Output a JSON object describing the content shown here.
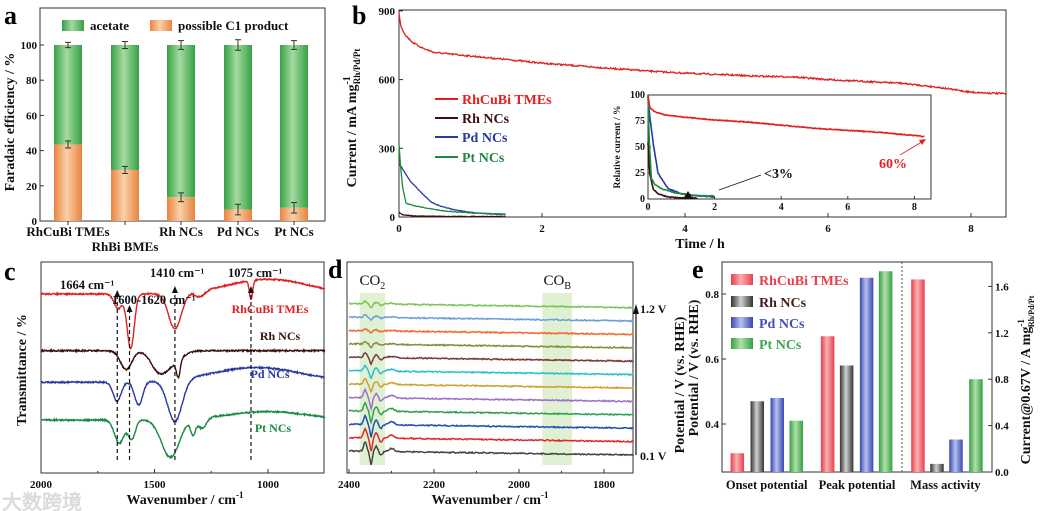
{
  "watermark": "大数跨境",
  "chart_data": [
    {
      "panel": "a",
      "type": "bar",
      "stacked": true,
      "ylabel": "Faradaic efficiency / %",
      "ylim": [
        0,
        110
      ],
      "yticks": [
        0,
        20,
        40,
        60,
        80,
        100
      ],
      "categories": [
        "RhCuBi TMEs",
        "RhBi BMEs",
        "Rh NCs",
        "Pd NCs",
        "Pt NCs"
      ],
      "series": [
        {
          "name": "possible C1 product",
          "color": "#f0a060",
          "values": [
            43.5,
            29,
            13.5,
            6.5,
            7.5
          ],
          "errors": [
            2,
            2,
            2.5,
            3,
            3
          ]
        },
        {
          "name": "acetate",
          "color": "#4cb058",
          "values": [
            56.5,
            71,
            86.5,
            93.5,
            92.5
          ],
          "total_errors": [
            1.5,
            2,
            2.5,
            3,
            2.5
          ]
        }
      ],
      "legend": "top"
    },
    {
      "panel": "b",
      "type": "line",
      "xlabel": "Time / h",
      "ylabel_main": "Current / mA mg",
      "ylabel_sup": "-1",
      "ylabel_sub": "Rh/Pd/Pt",
      "xlim": [
        0,
        8.5
      ],
      "ylim": [
        0,
        900
      ],
      "xticks": [
        0,
        2,
        4,
        6,
        8
      ],
      "yticks": [
        0,
        300,
        600,
        900
      ],
      "legend": "center-left",
      "series": [
        {
          "name": "RhCuBi TMEs",
          "color": "#e02020",
          "x": [
            0,
            0.03,
            0.1,
            0.2,
            0.35,
            0.5,
            1,
            1.5,
            2,
            2.5,
            3,
            3.5,
            4,
            4.5,
            5,
            5.5,
            6,
            6.5,
            7,
            7.5,
            8,
            8.5
          ],
          "y": [
            890,
            830,
            790,
            760,
            735,
            718,
            703,
            688,
            672,
            660,
            648,
            637,
            628,
            622,
            615,
            612,
            600,
            592,
            585,
            568,
            545,
            538
          ]
        },
        {
          "name": "Rh NCs",
          "color": "#3a1010",
          "x": [
            0,
            0.05,
            0.2,
            0.5,
            1,
            1.5
          ],
          "y": [
            20,
            10,
            5,
            3,
            2,
            2
          ]
        },
        {
          "name": "Pd NCs",
          "color": "#2838a0",
          "x": [
            0,
            0.05,
            0.15,
            0.3,
            0.45,
            0.6,
            0.8,
            1,
            1.25,
            1.5
          ],
          "y": [
            235,
            210,
            160,
            110,
            65,
            45,
            30,
            20,
            14,
            10
          ]
        },
        {
          "name": "Pt NCs",
          "color": "#1a8a40",
          "x": [
            0,
            0.02,
            0.05,
            0.1,
            0.2,
            0.4,
            0.6,
            0.8,
            1,
            1.25,
            1.5
          ],
          "y": [
            320,
            230,
            130,
            60,
            50,
            38,
            28,
            22,
            18,
            15,
            13
          ]
        }
      ],
      "inset": {
        "ylabel": "Relative current / %",
        "xlim": [
          0,
          8.5
        ],
        "ylim": [
          0,
          100
        ],
        "xticks": [
          0,
          2,
          4,
          6,
          8
        ],
        "yticks": [
          0,
          25,
          50,
          75,
          100
        ],
        "series": [
          {
            "name": "RhCuBi TMEs",
            "color": "#e02020",
            "x": [
              0,
              0.05,
              0.2,
              0.5,
              1,
              2,
              3,
              4,
              5,
              6,
              7,
              8,
              8.3
            ],
            "y": [
              100,
              88,
              84,
              81,
              79,
              76,
              74,
              71,
              68,
              66,
              64,
              61,
              60
            ]
          },
          {
            "name": "Rh NCs",
            "color": "#3a1010",
            "x": [
              0,
              0.05,
              0.15,
              0.3,
              0.6,
              1,
              1.5
            ],
            "y": [
              55,
              25,
              10,
              5,
              2,
              1,
              1
            ]
          },
          {
            "name": "Pd NCs",
            "color": "#2838a0",
            "x": [
              0,
              0.05,
              0.15,
              0.3,
              0.6,
              1,
              1.5,
              2
            ],
            "y": [
              100,
              80,
              55,
              25,
              10,
              5,
              3,
              2
            ]
          },
          {
            "name": "Pt NCs",
            "color": "#1a8a40",
            "x": [
              0,
              0.03,
              0.1,
              0.2,
              0.4,
              0.8,
              1.2,
              1.6,
              2
            ],
            "y": [
              100,
              60,
              20,
              14,
              10,
              6,
              4,
              3,
              3
            ]
          }
        ],
        "annotations": [
          {
            "text": "<3%",
            "color": "#111",
            "x": 1.2,
            "y": 3
          },
          {
            "text": "60%",
            "color": "#e02020",
            "x": 8.3,
            "y": 60
          }
        ]
      }
    },
    {
      "panel": "c",
      "type": "line",
      "xlabel_main": "Wavenumber / cm",
      "xlabel_sup": "-1",
      "ylabel": "Transmittance / %",
      "xlim": [
        2000,
        750
      ],
      "xticks": [
        2000,
        1500,
        1000
      ],
      "xticks_minor": [
        1750,
        1250
      ],
      "markers": [
        {
          "wavenumber": 1664,
          "label": "1664 cm⁻¹"
        },
        {
          "wavenumber": 1610,
          "label": "1600-1620 cm⁻¹"
        },
        {
          "wavenumber": 1410,
          "label": "1410 cm⁻¹"
        },
        {
          "wavenumber": 1075,
          "label": "1075 cm⁻¹"
        }
      ],
      "series": [
        {
          "name": "RhCuBi TMEs",
          "color": "#e02020",
          "offset": 3.0,
          "bands": [
            [
              1660,
              25,
              0.35
            ],
            [
              1605,
              22,
              1.3
            ],
            [
              1410,
              40,
              0.85
            ],
            [
              1300,
              30,
              0.15
            ],
            [
              1075,
              10,
              0.45
            ],
            [
              1000,
              250,
              -0.35
            ]
          ]
        },
        {
          "name": "Rh NCs",
          "color": "#3a1010",
          "offset": 1.65,
          "bands": [
            [
              1625,
              35,
              0.45
            ],
            [
              1480,
              50,
              0.45
            ],
            [
              1395,
              12,
              0.4
            ],
            [
              1420,
              60,
              0.25
            ]
          ]
        },
        {
          "name": "Pd NCs",
          "color": "#2838a0",
          "offset": 0.9,
          "bands": [
            [
              1665,
              25,
              0.45
            ],
            [
              1570,
              25,
              0.55
            ],
            [
              1410,
              45,
              1.0
            ],
            [
              1050,
              280,
              -0.35
            ]
          ]
        },
        {
          "name": "Pt NCs",
          "color": "#1a8a40",
          "offset": 0.0,
          "bands": [
            [
              1655,
              30,
              0.55
            ],
            [
              1600,
              22,
              0.45
            ],
            [
              1430,
              55,
              0.9
            ],
            [
              1330,
              15,
              0.35
            ],
            [
              1290,
              25,
              0.25
            ],
            [
              1000,
              250,
              -0.2
            ]
          ]
        }
      ]
    },
    {
      "panel": "d",
      "type": "line",
      "xlabel_main": "Wavenumber / cm",
      "xlabel_sup": "-1",
      "ylabel": "Potential / V (vs. RHE)",
      "xlim": [
        2400,
        1730
      ],
      "xticks": [
        2400,
        2200,
        2000,
        1800
      ],
      "xticks_minor": [
        2300,
        2100,
        1900
      ],
      "bands": [
        {
          "label_main": "CO",
          "label_sub": "2",
          "range": [
            2375,
            2315
          ]
        },
        {
          "label_main": "CO",
          "label_sub": "B",
          "range": [
            1945,
            1875
          ]
        }
      ],
      "potential_top": "1.2 V",
      "potential_bottom": "0.1 V",
      "series": [
        {
          "potential": 0.1,
          "color": "#444444",
          "co2_amp": 1.0
        },
        {
          "potential": 0.2,
          "color": "#e02828",
          "co2_amp": 1.0
        },
        {
          "potential": 0.3,
          "color": "#2050b0",
          "co2_amp": 0.95
        },
        {
          "potential": 0.4,
          "color": "#30a050",
          "co2_amp": 0.9
        },
        {
          "potential": 0.5,
          "color": "#a070c8",
          "co2_amp": 0.85
        },
        {
          "potential": 0.6,
          "color": "#d0a030",
          "co2_amp": 0.6
        },
        {
          "potential": 0.7,
          "color": "#2ac0c8",
          "co2_amp": 0.6
        },
        {
          "potential": 0.8,
          "color": "#7a3a3a",
          "co2_amp": 0.5
        },
        {
          "potential": 0.9,
          "color": "#8a8a3a",
          "co2_amp": 0.25
        },
        {
          "potential": 1.0,
          "color": "#f06a2a",
          "co2_amp": 0.2
        },
        {
          "potential": 1.1,
          "color": "#6aa0d8",
          "co2_amp": 0.25
        },
        {
          "potential": 1.2,
          "color": "#7cc45a",
          "co2_amp": 0.3
        }
      ]
    },
    {
      "panel": "e",
      "type": "bar",
      "categories": [
        "Onset potential",
        "Peak potential",
        "Mass activity"
      ],
      "ylabel_left": "Potential / V (vs. RHE)",
      "ylabel_right_main": "Current@0.67V / A mg",
      "ylabel_right_sup": "-1",
      "ylabel_right_sub": "Rh/Pd/Pt",
      "ylim_left": [
        0.25,
        0.9
      ],
      "ylim_right": [
        0,
        1.8
      ],
      "yticks_left": [
        0.4,
        0.6,
        0.8
      ],
      "yticks_right": [
        0.0,
        0.4,
        0.8,
        1.2,
        1.6
      ],
      "legend": "top-left",
      "series": [
        {
          "name": "RhCuBi TMEs",
          "color": "#e8404a",
          "values": [
            0.31,
            0.67,
            1.66
          ]
        },
        {
          "name": "Rh NCs",
          "color": "#555555",
          "text_color": "#4a1a1a",
          "values": [
            0.47,
            0.58,
            0.07
          ]
        },
        {
          "name": "Pd NCs",
          "color": "#4050b8",
          "values": [
            0.48,
            0.85,
            0.28
          ]
        },
        {
          "name": "Pt NCs",
          "color": "#3aa84a",
          "values": [
            0.41,
            0.87,
            0.8
          ]
        }
      ]
    }
  ],
  "panel_labels": [
    "a",
    "b",
    "c",
    "d",
    "e"
  ]
}
